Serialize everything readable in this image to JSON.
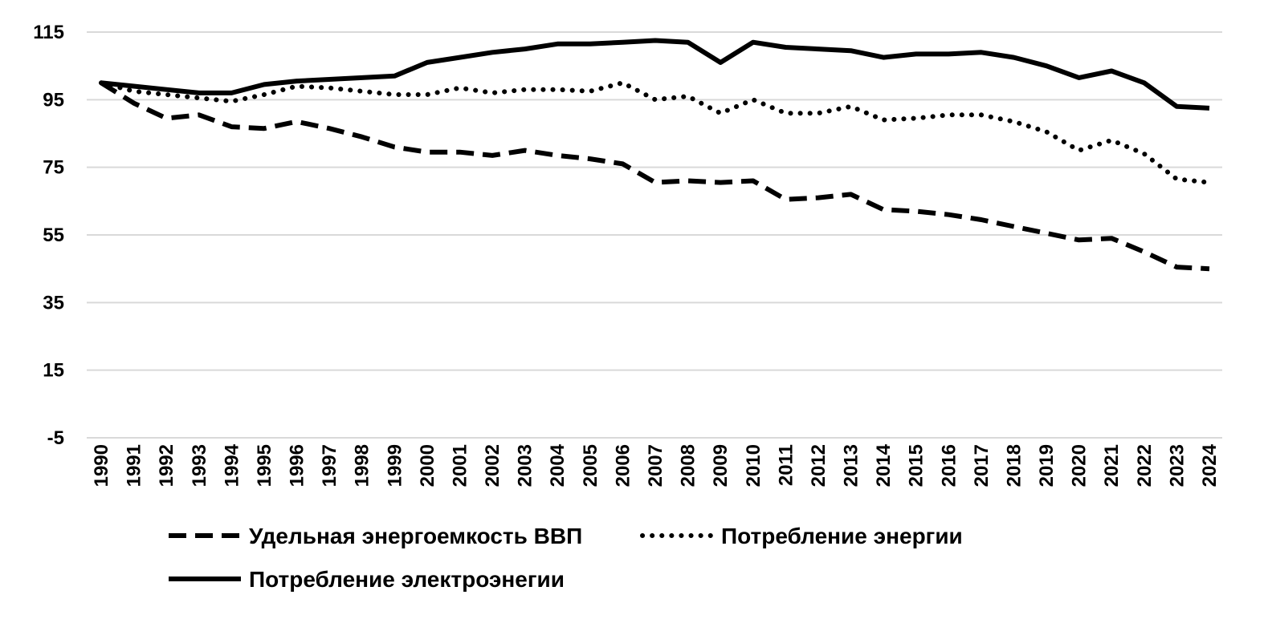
{
  "chart_data": {
    "type": "line",
    "title": "",
    "xlabel": "",
    "ylabel": "",
    "ylim": [
      -5,
      115
    ],
    "yticks": [
      -5,
      15,
      35,
      55,
      75,
      95,
      115
    ],
    "grid": "horizontal",
    "legend_position": "bottom",
    "categories": [
      "1990",
      "1991",
      "1992",
      "1993",
      "1994",
      "1995",
      "1996",
      "1997",
      "1998",
      "1999",
      "2000",
      "2001",
      "2002",
      "2003",
      "2004",
      "2005",
      "2006",
      "2007",
      "2008",
      "2009",
      "2010",
      "2011",
      "2012",
      "2013",
      "2014",
      "2015",
      "2016",
      "2017",
      "2018",
      "2019",
      "2020",
      "2021",
      "2022",
      "2023",
      "2024"
    ],
    "series": [
      {
        "name": "Удельная энергоемкость ВВП",
        "style": "dashed",
        "color": "#000000",
        "values": [
          100,
          94,
          89.5,
          90.5,
          87,
          86.5,
          88.5,
          86.5,
          84,
          81,
          79.5,
          79.5,
          78.5,
          80,
          78.5,
          77.5,
          76,
          70.5,
          71,
          70.5,
          71,
          65.5,
          66,
          67,
          62.5,
          62,
          61,
          59.5,
          57.5,
          55.5,
          53.5,
          54,
          50,
          45.5,
          45
        ]
      },
      {
        "name": "Потребление энергии",
        "style": "dotted",
        "color": "#000000",
        "values": [
          100,
          97.5,
          96.5,
          95.5,
          94.5,
          96.5,
          99,
          98.5,
          97.5,
          96.5,
          96.5,
          98.5,
          97,
          98,
          98,
          97.5,
          100,
          95,
          96,
          91,
          95,
          91,
          91,
          93,
          89,
          89.5,
          90.5,
          90.5,
          88.5,
          85.5,
          80,
          83,
          79,
          71.5,
          70.5
        ]
      },
      {
        "name": "Потребление электроэнегии",
        "style": "solid",
        "color": "#000000",
        "values": [
          100,
          99,
          98,
          97,
          97,
          99.5,
          100.5,
          101,
          101.5,
          102,
          106,
          107.5,
          109,
          110,
          111.5,
          111.5,
          112,
          112.5,
          112,
          106,
          112,
          110.5,
          110,
          109.5,
          107.5,
          108.5,
          108.5,
          109,
          107.5,
          105,
          101.5,
          103.5,
          100,
          93,
          92.5
        ]
      }
    ]
  }
}
